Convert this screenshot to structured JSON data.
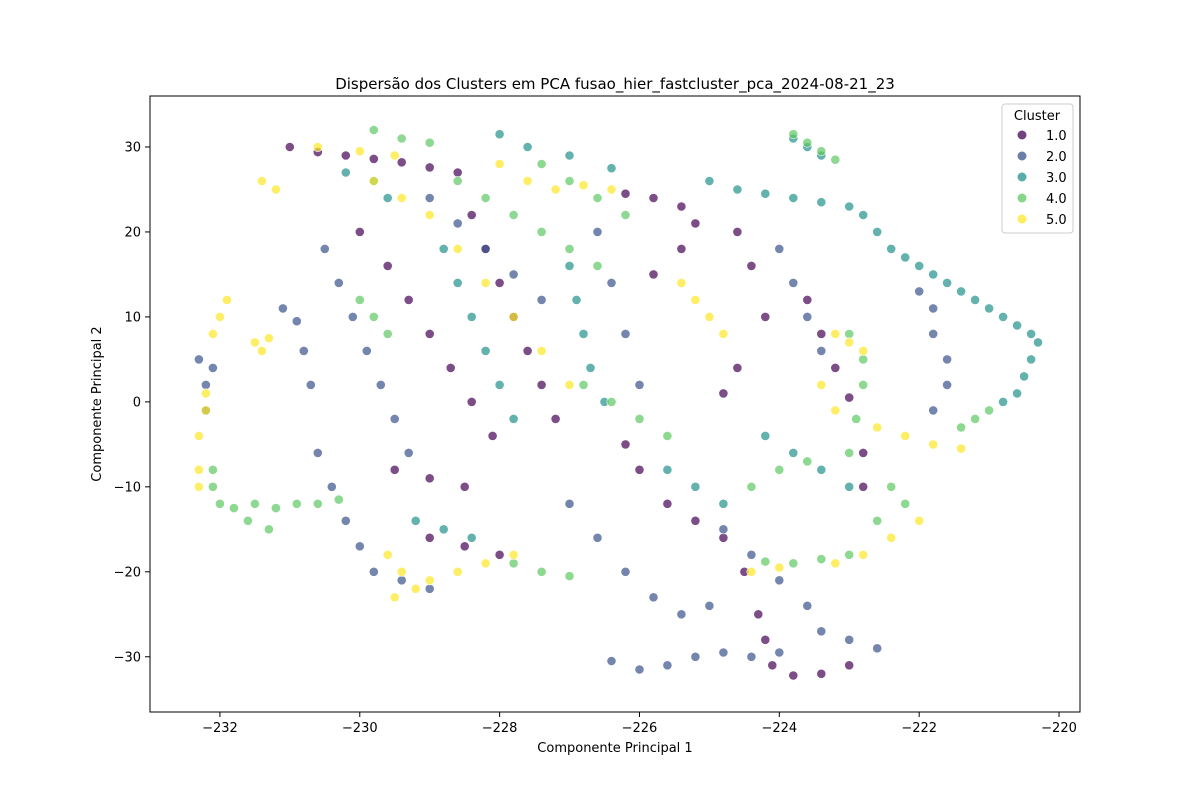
{
  "chart_data": {
    "type": "scatter",
    "title": "Dispersão dos Clusters em PCA fusao_hier_fastcluster_pca_2024-08-21_23",
    "xlabel": "Componente Principal 1",
    "ylabel": "Componente Principal 2",
    "xlim": [
      -233,
      -219.7
    ],
    "ylim": [
      -36.5,
      36
    ],
    "xticks": [
      -232,
      -230,
      -228,
      -226,
      -224,
      -222,
      -220
    ],
    "yticks": [
      -30,
      -20,
      -10,
      0,
      10,
      20,
      30
    ],
    "xtick_labels": [
      "−232",
      "−230",
      "−228",
      "−226",
      "−224",
      "−222",
      "−220"
    ],
    "ytick_labels": [
      "−30",
      "−20",
      "−10",
      "0",
      "10",
      "20",
      "30"
    ],
    "grid": false,
    "legend": {
      "title": "Cluster",
      "placement": "top-right",
      "entries": [
        "1.0",
        "2.0",
        "3.0",
        "4.0",
        "5.0"
      ]
    },
    "series": [
      {
        "name": "1.0",
        "color": "#440154",
        "points": [
          [
            -231.0,
            30.0
          ],
          [
            -230.6,
            29.4
          ],
          [
            -230.2,
            29.0
          ],
          [
            -229.8,
            28.6
          ],
          [
            -229.4,
            28.2
          ],
          [
            -229.0,
            27.6
          ],
          [
            -228.6,
            27.0
          ],
          [
            -230.0,
            20.0
          ],
          [
            -229.6,
            16.0
          ],
          [
            -229.3,
            12.0
          ],
          [
            -229.0,
            8.0
          ],
          [
            -228.7,
            4.0
          ],
          [
            -228.4,
            0.0
          ],
          [
            -228.1,
            -4.0
          ],
          [
            -228.4,
            22.0
          ],
          [
            -228.2,
            18.0
          ],
          [
            -228.0,
            14.0
          ],
          [
            -227.8,
            10.0
          ],
          [
            -227.6,
            6.0
          ],
          [
            -227.4,
            2.0
          ],
          [
            -227.2,
            -2.0
          ],
          [
            -229.5,
            -8.0
          ],
          [
            -229.0,
            -9.0
          ],
          [
            -228.5,
            -10.0
          ],
          [
            -229.0,
            -16.0
          ],
          [
            -228.5,
            -17.0
          ],
          [
            -228.0,
            -18.0
          ],
          [
            -226.2,
            24.5
          ],
          [
            -225.8,
            24.0
          ],
          [
            -225.4,
            23.0
          ],
          [
            -225.2,
            21.0
          ],
          [
            -225.4,
            18.0
          ],
          [
            -225.8,
            15.0
          ],
          [
            -224.6,
            20.0
          ],
          [
            -224.4,
            16.0
          ],
          [
            -224.2,
            10.0
          ],
          [
            -224.6,
            4.0
          ],
          [
            -224.8,
            1.0
          ],
          [
            -226.2,
            -5.0
          ],
          [
            -226.0,
            -8.0
          ],
          [
            -225.6,
            -12.0
          ],
          [
            -225.2,
            -14.0
          ],
          [
            -224.8,
            -16.0
          ],
          [
            -224.5,
            -20.0
          ],
          [
            -224.3,
            -25.0
          ],
          [
            -224.2,
            -28.0
          ],
          [
            -224.1,
            -31.0
          ],
          [
            -223.8,
            -32.2
          ],
          [
            -223.4,
            -32.0
          ],
          [
            -223.0,
            -31.0
          ],
          [
            -223.6,
            12.0
          ],
          [
            -223.4,
            8.0
          ],
          [
            -223.2,
            4.0
          ],
          [
            -223.0,
            0.5
          ],
          [
            -222.8,
            -6.0
          ],
          [
            -222.8,
            -10.0
          ]
        ]
      },
      {
        "name": "2.0",
        "color": "#3b528b",
        "points": [
          [
            -232.3,
            5.0
          ],
          [
            -232.2,
            2.0
          ],
          [
            -232.2,
            -1.0
          ],
          [
            -232.1,
            4.0
          ],
          [
            -231.1,
            11.0
          ],
          [
            -230.9,
            9.5
          ],
          [
            -230.8,
            6.0
          ],
          [
            -230.7,
            2.0
          ],
          [
            -230.5,
            18.0
          ],
          [
            -230.3,
            14.0
          ],
          [
            -230.1,
            10.0
          ],
          [
            -229.9,
            6.0
          ],
          [
            -229.7,
            2.0
          ],
          [
            -229.5,
            -2.0
          ],
          [
            -229.3,
            -6.0
          ],
          [
            -230.6,
            -6.0
          ],
          [
            -230.4,
            -10.0
          ],
          [
            -230.2,
            -14.0
          ],
          [
            -230.0,
            -17.0
          ],
          [
            -229.8,
            -20.0
          ],
          [
            -229.4,
            -21.0
          ],
          [
            -229.0,
            -22.0
          ],
          [
            -229.0,
            24.0
          ],
          [
            -228.6,
            21.0
          ],
          [
            -228.2,
            18.0
          ],
          [
            -227.8,
            15.0
          ],
          [
            -227.4,
            12.0
          ],
          [
            -226.6,
            20.0
          ],
          [
            -226.4,
            14.0
          ],
          [
            -226.2,
            8.0
          ],
          [
            -226.0,
            2.0
          ],
          [
            -227.0,
            -12.0
          ],
          [
            -226.6,
            -16.0
          ],
          [
            -226.2,
            -20.0
          ],
          [
            -225.8,
            -23.0
          ],
          [
            -225.4,
            -25.0
          ],
          [
            -225.0,
            -24.0
          ],
          [
            -226.4,
            -30.5
          ],
          [
            -226.0,
            -31.5
          ],
          [
            -225.6,
            -31.0
          ],
          [
            -225.2,
            -30.0
          ],
          [
            -224.8,
            -29.5
          ],
          [
            -224.4,
            -30.0
          ],
          [
            -224.0,
            -29.5
          ],
          [
            -224.8,
            -15.0
          ],
          [
            -224.4,
            -18.0
          ],
          [
            -224.0,
            -21.0
          ],
          [
            -223.6,
            -24.0
          ],
          [
            -223.4,
            -27.0
          ],
          [
            -223.0,
            -28.0
          ],
          [
            -222.6,
            -29.0
          ],
          [
            -224.0,
            18.0
          ],
          [
            -223.8,
            14.0
          ],
          [
            -223.6,
            10.0
          ],
          [
            -223.4,
            6.0
          ],
          [
            -222.0,
            13.0
          ],
          [
            -221.8,
            11.0
          ],
          [
            -221.8,
            8.0
          ],
          [
            -221.6,
            5.0
          ],
          [
            -221.6,
            2.0
          ],
          [
            -221.8,
            -1.0
          ]
        ]
      },
      {
        "name": "3.0",
        "color": "#21918c",
        "points": [
          [
            -230.2,
            27.0
          ],
          [
            -229.8,
            26.0
          ],
          [
            -229.6,
            24.0
          ],
          [
            -228.0,
            31.5
          ],
          [
            -227.6,
            30.0
          ],
          [
            -227.0,
            29.0
          ],
          [
            -226.4,
            27.5
          ],
          [
            -228.8,
            18.0
          ],
          [
            -228.6,
            14.0
          ],
          [
            -228.4,
            10.0
          ],
          [
            -228.2,
            6.0
          ],
          [
            -228.0,
            2.0
          ],
          [
            -227.8,
            -2.0
          ],
          [
            -227.0,
            16.0
          ],
          [
            -226.9,
            12.0
          ],
          [
            -226.8,
            8.0
          ],
          [
            -226.7,
            4.0
          ],
          [
            -226.5,
            0.0
          ],
          [
            -229.2,
            -14.0
          ],
          [
            -228.8,
            -15.0
          ],
          [
            -228.4,
            -16.0
          ],
          [
            -225.0,
            26.0
          ],
          [
            -224.6,
            25.0
          ],
          [
            -224.2,
            24.5
          ],
          [
            -223.8,
            24.0
          ],
          [
            -223.4,
            23.5
          ],
          [
            -223.0,
            23.0
          ],
          [
            -223.8,
            31.0
          ],
          [
            -223.6,
            30.0
          ],
          [
            -223.4,
            29.0
          ],
          [
            -222.8,
            22.0
          ],
          [
            -222.6,
            20.0
          ],
          [
            -222.4,
            18.0
          ],
          [
            -222.2,
            17.0
          ],
          [
            -222.0,
            16.0
          ],
          [
            -221.8,
            15.0
          ],
          [
            -221.6,
            14.0
          ],
          [
            -221.4,
            13.0
          ],
          [
            -221.2,
            12.0
          ],
          [
            -221.0,
            11.0
          ],
          [
            -220.8,
            10.0
          ],
          [
            -220.6,
            9.0
          ],
          [
            -220.4,
            8.0
          ],
          [
            -220.3,
            7.0
          ],
          [
            -220.4,
            5.0
          ],
          [
            -220.5,
            3.0
          ],
          [
            -220.6,
            1.0
          ],
          [
            -220.8,
            0.0
          ],
          [
            -224.2,
            -4.0
          ],
          [
            -223.8,
            -6.0
          ],
          [
            -223.4,
            -8.0
          ],
          [
            -223.0,
            -10.0
          ],
          [
            -225.6,
            -8.0
          ],
          [
            -225.2,
            -10.0
          ],
          [
            -224.8,
            -12.0
          ]
        ]
      },
      {
        "name": "4.0",
        "color": "#5ec962",
        "points": [
          [
            -232.1,
            -8.0
          ],
          [
            -232.1,
            -10.0
          ],
          [
            -232.0,
            -12.0
          ],
          [
            -231.8,
            -12.5
          ],
          [
            -231.5,
            -12.0
          ],
          [
            -231.2,
            -12.5
          ],
          [
            -230.9,
            -12.0
          ],
          [
            -230.6,
            -12.0
          ],
          [
            -230.3,
            -11.5
          ],
          [
            -231.6,
            -14.0
          ],
          [
            -231.3,
            -15.0
          ],
          [
            -229.8,
            32.0
          ],
          [
            -229.4,
            31.0
          ],
          [
            -229.0,
            30.5
          ],
          [
            -230.0,
            12.0
          ],
          [
            -229.8,
            10.0
          ],
          [
            -229.6,
            8.0
          ],
          [
            -228.6,
            26.0
          ],
          [
            -228.2,
            24.0
          ],
          [
            -227.8,
            22.0
          ],
          [
            -227.4,
            20.0
          ],
          [
            -227.0,
            18.0
          ],
          [
            -226.6,
            16.0
          ],
          [
            -227.4,
            28.0
          ],
          [
            -227.0,
            26.0
          ],
          [
            -226.6,
            24.0
          ],
          [
            -226.2,
            22.0
          ],
          [
            -226.8,
            2.0
          ],
          [
            -226.4,
            0.0
          ],
          [
            -226.0,
            -2.0
          ],
          [
            -225.6,
            -4.0
          ],
          [
            -227.8,
            -19.0
          ],
          [
            -227.4,
            -20.0
          ],
          [
            -227.0,
            -20.5
          ],
          [
            -223.8,
            31.5
          ],
          [
            -223.6,
            30.5
          ],
          [
            -223.4,
            29.5
          ],
          [
            -223.2,
            28.5
          ],
          [
            -223.0,
            8.0
          ],
          [
            -222.8,
            5.0
          ],
          [
            -222.8,
            2.0
          ],
          [
            -222.9,
            -2.0
          ],
          [
            -223.0,
            -6.0
          ],
          [
            -222.4,
            -10.0
          ],
          [
            -222.2,
            -12.0
          ],
          [
            -222.6,
            -14.0
          ],
          [
            -223.0,
            -18.0
          ],
          [
            -223.4,
            -18.5
          ],
          [
            -223.8,
            -19.0
          ],
          [
            -224.2,
            -18.8
          ],
          [
            -221.0,
            -1.0
          ],
          [
            -221.2,
            -2.0
          ],
          [
            -221.4,
            -3.0
          ],
          [
            -224.4,
            -10.0
          ],
          [
            -224.0,
            -8.0
          ],
          [
            -223.6,
            -7.0
          ]
        ]
      },
      {
        "name": "5.0",
        "color": "#fde725",
        "points": [
          [
            -231.4,
            26.0
          ],
          [
            -231.2,
            25.0
          ],
          [
            -231.9,
            12.0
          ],
          [
            -232.0,
            10.0
          ],
          [
            -232.1,
            8.0
          ],
          [
            -232.2,
            1.0
          ],
          [
            -232.2,
            -1.0
          ],
          [
            -232.3,
            -4.0
          ],
          [
            -232.3,
            -8.0
          ],
          [
            -232.3,
            -10.0
          ],
          [
            -231.5,
            7.0
          ],
          [
            -231.4,
            6.0
          ],
          [
            -231.3,
            7.5
          ],
          [
            -230.6,
            30.0
          ],
          [
            -230.0,
            29.5
          ],
          [
            -229.5,
            29.0
          ],
          [
            -229.8,
            26.0
          ],
          [
            -229.4,
            24.0
          ],
          [
            -229.0,
            22.0
          ],
          [
            -228.6,
            18.0
          ],
          [
            -228.2,
            14.0
          ],
          [
            -227.8,
            10.0
          ],
          [
            -227.4,
            6.0
          ],
          [
            -227.0,
            2.0
          ],
          [
            -228.0,
            28.0
          ],
          [
            -227.6,
            26.0
          ],
          [
            -227.2,
            25.0
          ],
          [
            -226.8,
            25.5
          ],
          [
            -226.4,
            25.0
          ],
          [
            -229.6,
            -18.0
          ],
          [
            -229.4,
            -20.0
          ],
          [
            -229.2,
            -22.0
          ],
          [
            -229.5,
            -23.0
          ],
          [
            -229.0,
            -21.0
          ],
          [
            -228.6,
            -20.0
          ],
          [
            -228.2,
            -19.0
          ],
          [
            -227.8,
            -18.0
          ],
          [
            -225.4,
            14.0
          ],
          [
            -225.2,
            12.0
          ],
          [
            -225.0,
            10.0
          ],
          [
            -224.8,
            8.0
          ],
          [
            -223.2,
            8.0
          ],
          [
            -223.0,
            7.0
          ],
          [
            -222.8,
            6.0
          ],
          [
            -223.4,
            2.0
          ],
          [
            -223.2,
            -1.0
          ],
          [
            -222.6,
            -3.0
          ],
          [
            -222.2,
            -4.0
          ],
          [
            -221.8,
            -5.0
          ],
          [
            -221.4,
            -5.5
          ],
          [
            -222.0,
            -14.0
          ],
          [
            -222.4,
            -16.0
          ],
          [
            -222.8,
            -18.0
          ],
          [
            -223.2,
            -19.0
          ],
          [
            -224.4,
            -20.0
          ],
          [
            -224.0,
            -19.5
          ]
        ]
      }
    ]
  }
}
